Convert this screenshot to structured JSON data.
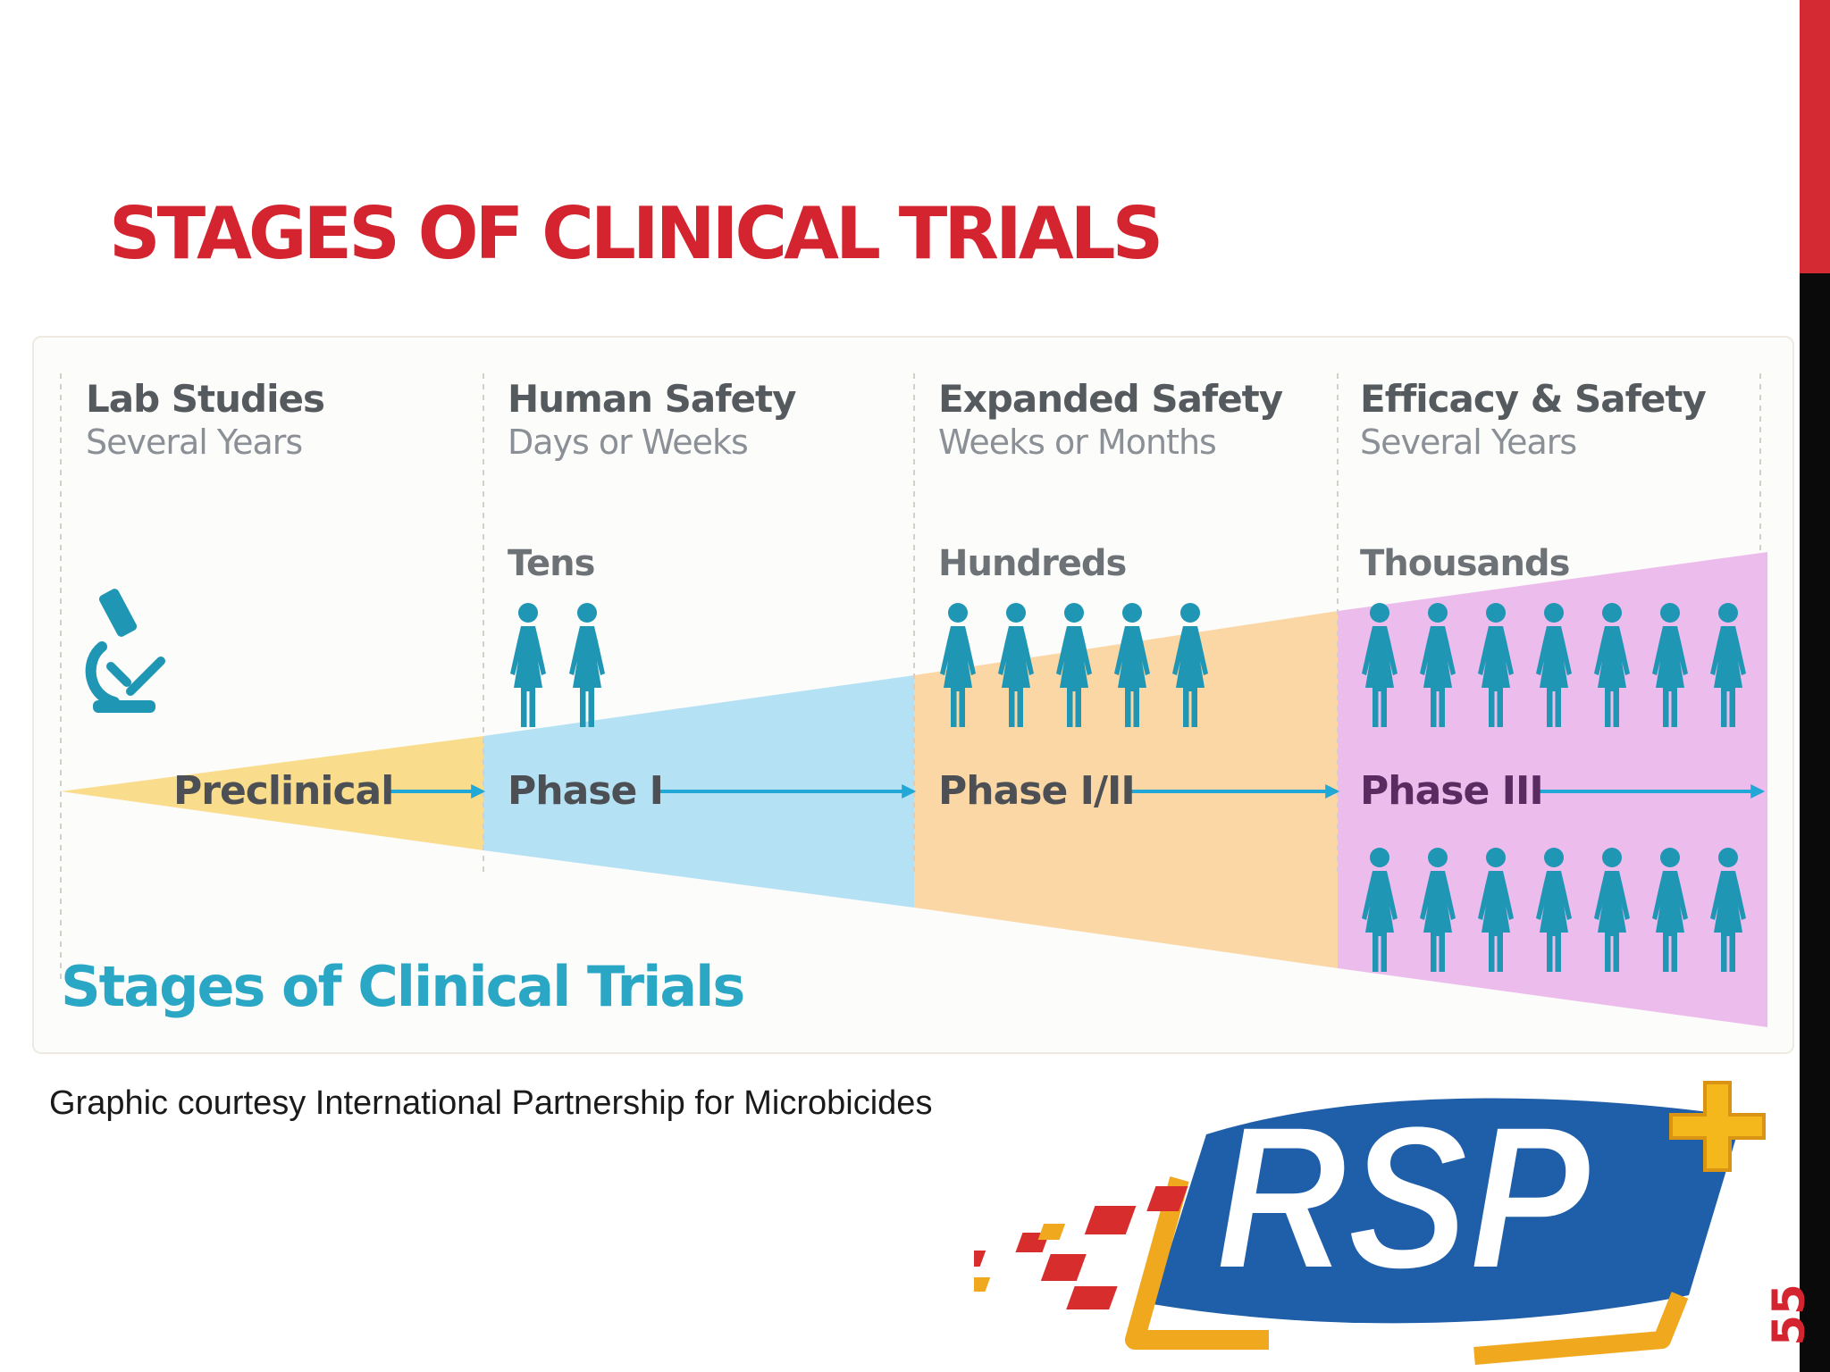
{
  "slide": {
    "title": "STAGES OF CLINICAL TRIALS",
    "caption": "Graphic courtesy International Partnership for Microbicides",
    "slide_number": "55",
    "logo_text": "RSP",
    "accent_color": "#d3242f"
  },
  "graphic": {
    "title": "Stages of Clinical Trials",
    "stages": [
      {
        "title": "Lab Studies",
        "duration": "Several Years",
        "count": "",
        "phase": "Preclinical",
        "icon": "microscope-icon",
        "people": 0,
        "band_color": "#f9dc8c"
      },
      {
        "title": "Human Safety",
        "duration": "Days or Weeks",
        "count": "Tens",
        "phase": "Phase I",
        "icon": "person-icon",
        "people": 2,
        "band_color": "#b4e1f4"
      },
      {
        "title": "Expanded Safety",
        "duration": "Weeks or Months",
        "count": "Hundreds",
        "phase": "Phase I/II",
        "icon": "person-icon",
        "people": 5,
        "band_color": "#fad7a5"
      },
      {
        "title": "Efficacy & Safety",
        "duration": "Several Years",
        "count": "Thousands",
        "phase": "Phase III",
        "icon": "person-icon",
        "people": 14,
        "band_color": "#ecbdec"
      }
    ],
    "people_color": "#1e96b4",
    "arrow_color": "#22a8d6"
  }
}
